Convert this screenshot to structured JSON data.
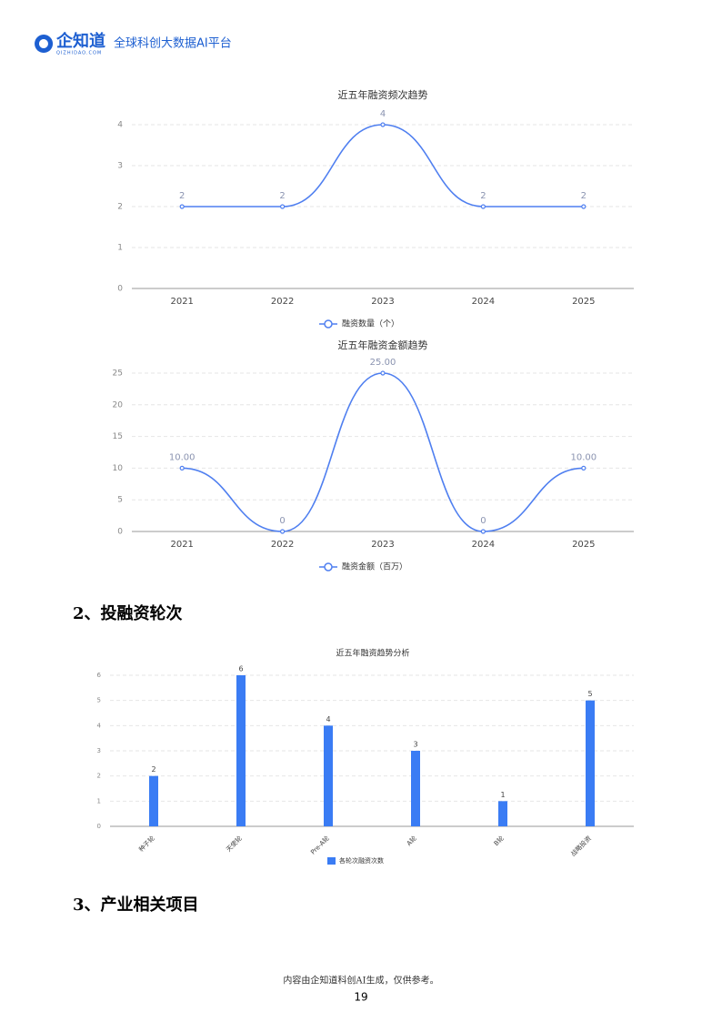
{
  "header": {
    "logo": "企知道",
    "logo_sub": "QIZHIDAO.COM",
    "slogan": "全球科创大数据AI平台"
  },
  "chart_data": [
    {
      "type": "line",
      "title": "近五年融资频次趋势",
      "categories": [
        "2021",
        "2022",
        "2023",
        "2024",
        "2025"
      ],
      "series": [
        {
          "name": "融资数量（个）",
          "color": "#4f7ff0",
          "values": [
            2,
            2,
            4,
            2,
            2
          ]
        }
      ],
      "ylim": [
        0,
        4
      ],
      "yticks": [
        0,
        1,
        2,
        3,
        4
      ],
      "grid": true,
      "legend": "bottom"
    },
    {
      "type": "line",
      "title": "近五年融资金额趋势",
      "categories": [
        "2021",
        "2022",
        "2023",
        "2024",
        "2025"
      ],
      "series": [
        {
          "name": "融资金额（百万）",
          "color": "#4f7ff0",
          "values": [
            10,
            0,
            25,
            0,
            10
          ],
          "value_labels": [
            "10.00",
            "0",
            "25.00",
            "0",
            "10.00"
          ]
        }
      ],
      "ylim": [
        0,
        25
      ],
      "yticks": [
        0,
        5,
        10,
        15,
        20,
        25
      ],
      "grid": true,
      "legend": "bottom"
    },
    {
      "type": "bar",
      "title": "近五年融资趋势分析",
      "categories": [
        "种子轮",
        "天使轮",
        "Pre-A轮",
        "A轮",
        "B轮",
        "战略投资"
      ],
      "series": [
        {
          "name": "各轮次融资次数",
          "color": "#3a7cf4",
          "values": [
            2,
            6,
            4,
            3,
            1,
            5
          ]
        }
      ],
      "ylim": [
        0,
        6
      ],
      "yticks": [
        0,
        1,
        2,
        3,
        4,
        5,
        6
      ],
      "grid": true,
      "legend": "bottom"
    }
  ],
  "sections": [
    "2、投融资轮次",
    "3、产业相关项目"
  ],
  "footer": {
    "note": "内容由企知道科创AI生成，仅供参考。",
    "page": 19
  }
}
